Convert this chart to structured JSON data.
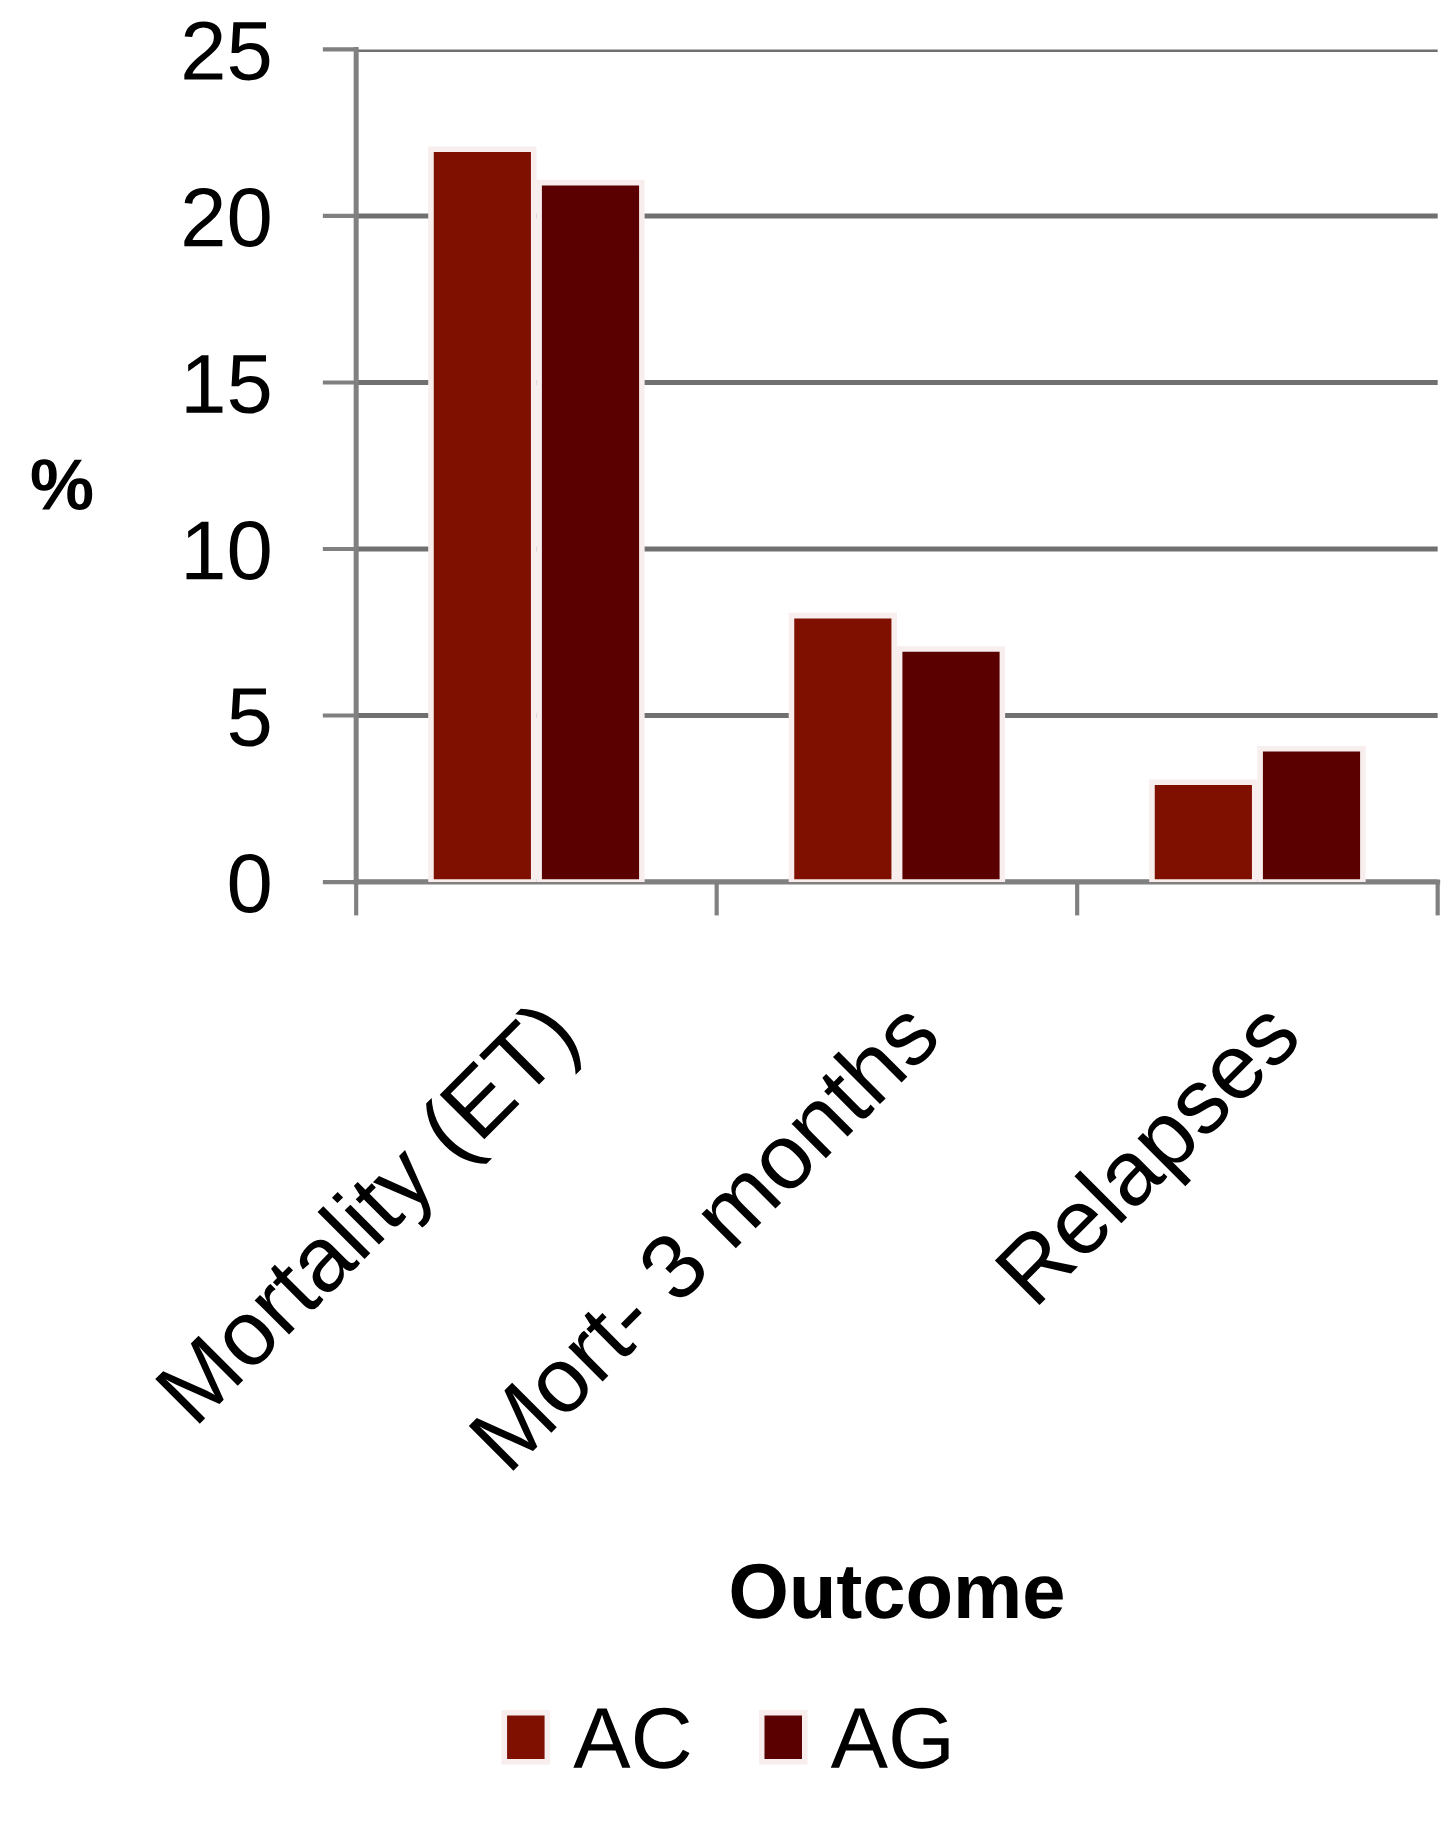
{
  "chart_data": {
    "type": "bar",
    "xlabel": "Outcome",
    "ylabel": "%",
    "categories": [
      "Mortality (ET)",
      "Mort- 3 months",
      "Relapses"
    ],
    "series": [
      {
        "name": "AC",
        "color": "#7f1000",
        "values": [
          22,
          8,
          3
        ]
      },
      {
        "name": "AG",
        "color": "#5a0000",
        "values": [
          21,
          7,
          4
        ]
      }
    ],
    "ylim": [
      0,
      25
    ],
    "yticks": [
      0,
      5,
      10,
      15,
      20,
      25
    ],
    "grid": "y",
    "legend": "bottom"
  }
}
